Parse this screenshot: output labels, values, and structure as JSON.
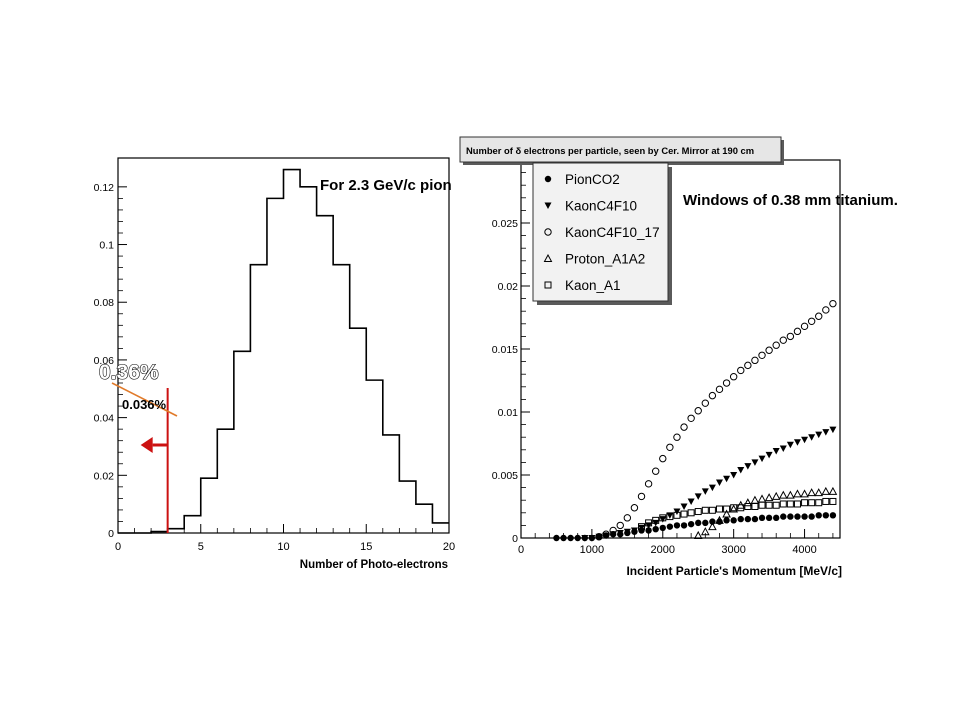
{
  "chart_data": [
    {
      "type": "histogram",
      "title": "For 2.3 GeV/c pion",
      "xlabel": "Number of Photo-electrons",
      "ylabel": "",
      "xlim": [
        0,
        20
      ],
      "ylim": [
        0,
        0.13
      ],
      "x_ticks": [
        0,
        5,
        10,
        15,
        20
      ],
      "y_ticks": [
        0,
        0.02,
        0.04,
        0.06,
        0.08,
        0.1,
        0.12
      ],
      "x_tick_labels": [
        "0",
        "5",
        "10",
        "15",
        "20"
      ],
      "y_tick_labels": [
        "0",
        "0.02",
        "0.04",
        "0.06",
        "0.08",
        "0.1",
        "0.12"
      ],
      "bin_width": 1,
      "bin_edges_start": 0,
      "values": [
        0,
        0,
        0.0005,
        0.0015,
        0.006,
        0.019,
        0.036,
        0.063,
        0.093,
        0.116,
        0.126,
        0.12,
        0.11,
        0.093,
        0.071,
        0.053,
        0.034,
        0.018,
        0.01,
        0.0035
      ],
      "cut_line_x": 3,
      "annotations": {
        "big_label": "0.36%",
        "small_label": "0.036%"
      }
    },
    {
      "type": "scatter",
      "title": "Number of δ electrons per particle, seen by Cer. Mirror at 190 cm",
      "subtitle": "Windows of 0.38 mm titanium.",
      "xlabel": "Incident Particle's Momentum [MeV/c]",
      "ylabel": "",
      "xlim": [
        0,
        4500
      ],
      "ylim": [
        0,
        0.03
      ],
      "x_ticks": [
        0,
        1000,
        2000,
        3000,
        4000
      ],
      "y_ticks": [
        0,
        0.005,
        0.01,
        0.015,
        0.02,
        0.025
      ],
      "x_tick_labels": [
        "0",
        "1000",
        "2000",
        "3000",
        "4000"
      ],
      "y_tick_labels": [
        "0",
        "0.005",
        "0.01",
        "0.015",
        "0.02",
        "0.025"
      ],
      "legend_position": "top-left",
      "series": [
        {
          "name": "PionCO2",
          "marker": "filled-circle",
          "x": [
            500,
            600,
            700,
            800,
            900,
            1000,
            1100,
            1200,
            1300,
            1400,
            1500,
            1600,
            1700,
            1800,
            1900,
            2000,
            2100,
            2200,
            2300,
            2400,
            2500,
            2600,
            2700,
            2800,
            2900,
            3000,
            3100,
            3200,
            3300,
            3400,
            3500,
            3600,
            3700,
            3800,
            3900,
            4000,
            4100,
            4200,
            4300,
            4400
          ],
          "y": [
            0,
            0,
            0,
            0,
            0,
            0,
            0.0001,
            0.0002,
            0.0003,
            0.0003,
            0.0004,
            0.0005,
            0.0006,
            0.0006,
            0.0007,
            0.0008,
            0.0009,
            0.001,
            0.001,
            0.0011,
            0.0012,
            0.0012,
            0.0013,
            0.0013,
            0.0014,
            0.0014,
            0.0015,
            0.0015,
            0.0015,
            0.0016,
            0.0016,
            0.0016,
            0.0017,
            0.0017,
            0.0017,
            0.0017,
            0.0017,
            0.0018,
            0.0018,
            0.0018
          ]
        },
        {
          "name": "KaonC4F10",
          "marker": "filled-triangle-down",
          "x": [
            900,
            1000,
            1100,
            1200,
            1300,
            1400,
            1500,
            1600,
            1700,
            1800,
            1900,
            2000,
            2100,
            2200,
            2300,
            2400,
            2500,
            2600,
            2700,
            2800,
            2900,
            3000,
            3100,
            3200,
            3300,
            3400,
            3500,
            3600,
            3700,
            3800,
            3900,
            4000,
            4100,
            4200,
            4300,
            4400
          ],
          "y": [
            0,
            0,
            0.0001,
            0.0002,
            0.0003,
            0.0004,
            0.0005,
            0.0006,
            0.0008,
            0.001,
            0.0012,
            0.0015,
            0.0018,
            0.0021,
            0.0025,
            0.0029,
            0.0033,
            0.0037,
            0.004,
            0.0044,
            0.0047,
            0.005,
            0.0054,
            0.0057,
            0.006,
            0.0063,
            0.0066,
            0.0069,
            0.0071,
            0.0074,
            0.0076,
            0.0078,
            0.008,
            0.0082,
            0.0084,
            0.0086
          ]
        },
        {
          "name": "KaonC4F10_17",
          "marker": "open-circle",
          "x": [
            1100,
            1200,
            1300,
            1400,
            1500,
            1600,
            1700,
            1800,
            1900,
            2000,
            2100,
            2200,
            2300,
            2400,
            2500,
            2600,
            2700,
            2800,
            2900,
            3000,
            3100,
            3200,
            3300,
            3400,
            3500,
            3600,
            3700,
            3800,
            3900,
            4000,
            4100,
            4200,
            4300,
            4400
          ],
          "y": [
            0.0001,
            0.0003,
            0.0006,
            0.001,
            0.0016,
            0.0024,
            0.0033,
            0.0043,
            0.0053,
            0.0063,
            0.0072,
            0.008,
            0.0088,
            0.0095,
            0.0101,
            0.0107,
            0.0113,
            0.0118,
            0.0123,
            0.0128,
            0.0133,
            0.0137,
            0.0141,
            0.0145,
            0.0149,
            0.0153,
            0.0157,
            0.016,
            0.0164,
            0.0168,
            0.0172,
            0.0176,
            0.0181,
            0.0186
          ]
        },
        {
          "name": "Proton_A1A2",
          "marker": "open-triangle-up",
          "x": [
            2500,
            2600,
            2700,
            2800,
            2900,
            3000,
            3100,
            3200,
            3300,
            3400,
            3500,
            3600,
            3700,
            3800,
            3900,
            4000,
            4100,
            4200,
            4300,
            4400
          ],
          "y": [
            0.0002,
            0.0005,
            0.0009,
            0.0014,
            0.0019,
            0.0023,
            0.0026,
            0.0028,
            0.003,
            0.0031,
            0.0032,
            0.0033,
            0.0034,
            0.0034,
            0.0035,
            0.0035,
            0.0036,
            0.0036,
            0.0037,
            0.0037
          ]
        },
        {
          "name": "Kaon_A1",
          "marker": "open-square",
          "x": [
            1700,
            1800,
            1900,
            2000,
            2100,
            2200,
            2300,
            2400,
            2500,
            2600,
            2700,
            2800,
            2900,
            3000,
            3100,
            3200,
            3300,
            3400,
            3500,
            3600,
            3700,
            3800,
            3900,
            4000,
            4100,
            4200,
            4300,
            4400
          ],
          "y": [
            0.0009,
            0.0012,
            0.0014,
            0.0016,
            0.0017,
            0.0018,
            0.0019,
            0.002,
            0.0021,
            0.0022,
            0.0022,
            0.0023,
            0.0023,
            0.0024,
            0.0024,
            0.0025,
            0.0025,
            0.0026,
            0.0026,
            0.0026,
            0.0027,
            0.0027,
            0.0027,
            0.0028,
            0.0028,
            0.0028,
            0.0029,
            0.0029
          ]
        }
      ]
    }
  ],
  "colors": {
    "cut_line": "#cc1111",
    "annotation_line": "#e07a2a",
    "legend_bg": "#f2f2f2",
    "title_box_bg": "#e6e6e6"
  }
}
